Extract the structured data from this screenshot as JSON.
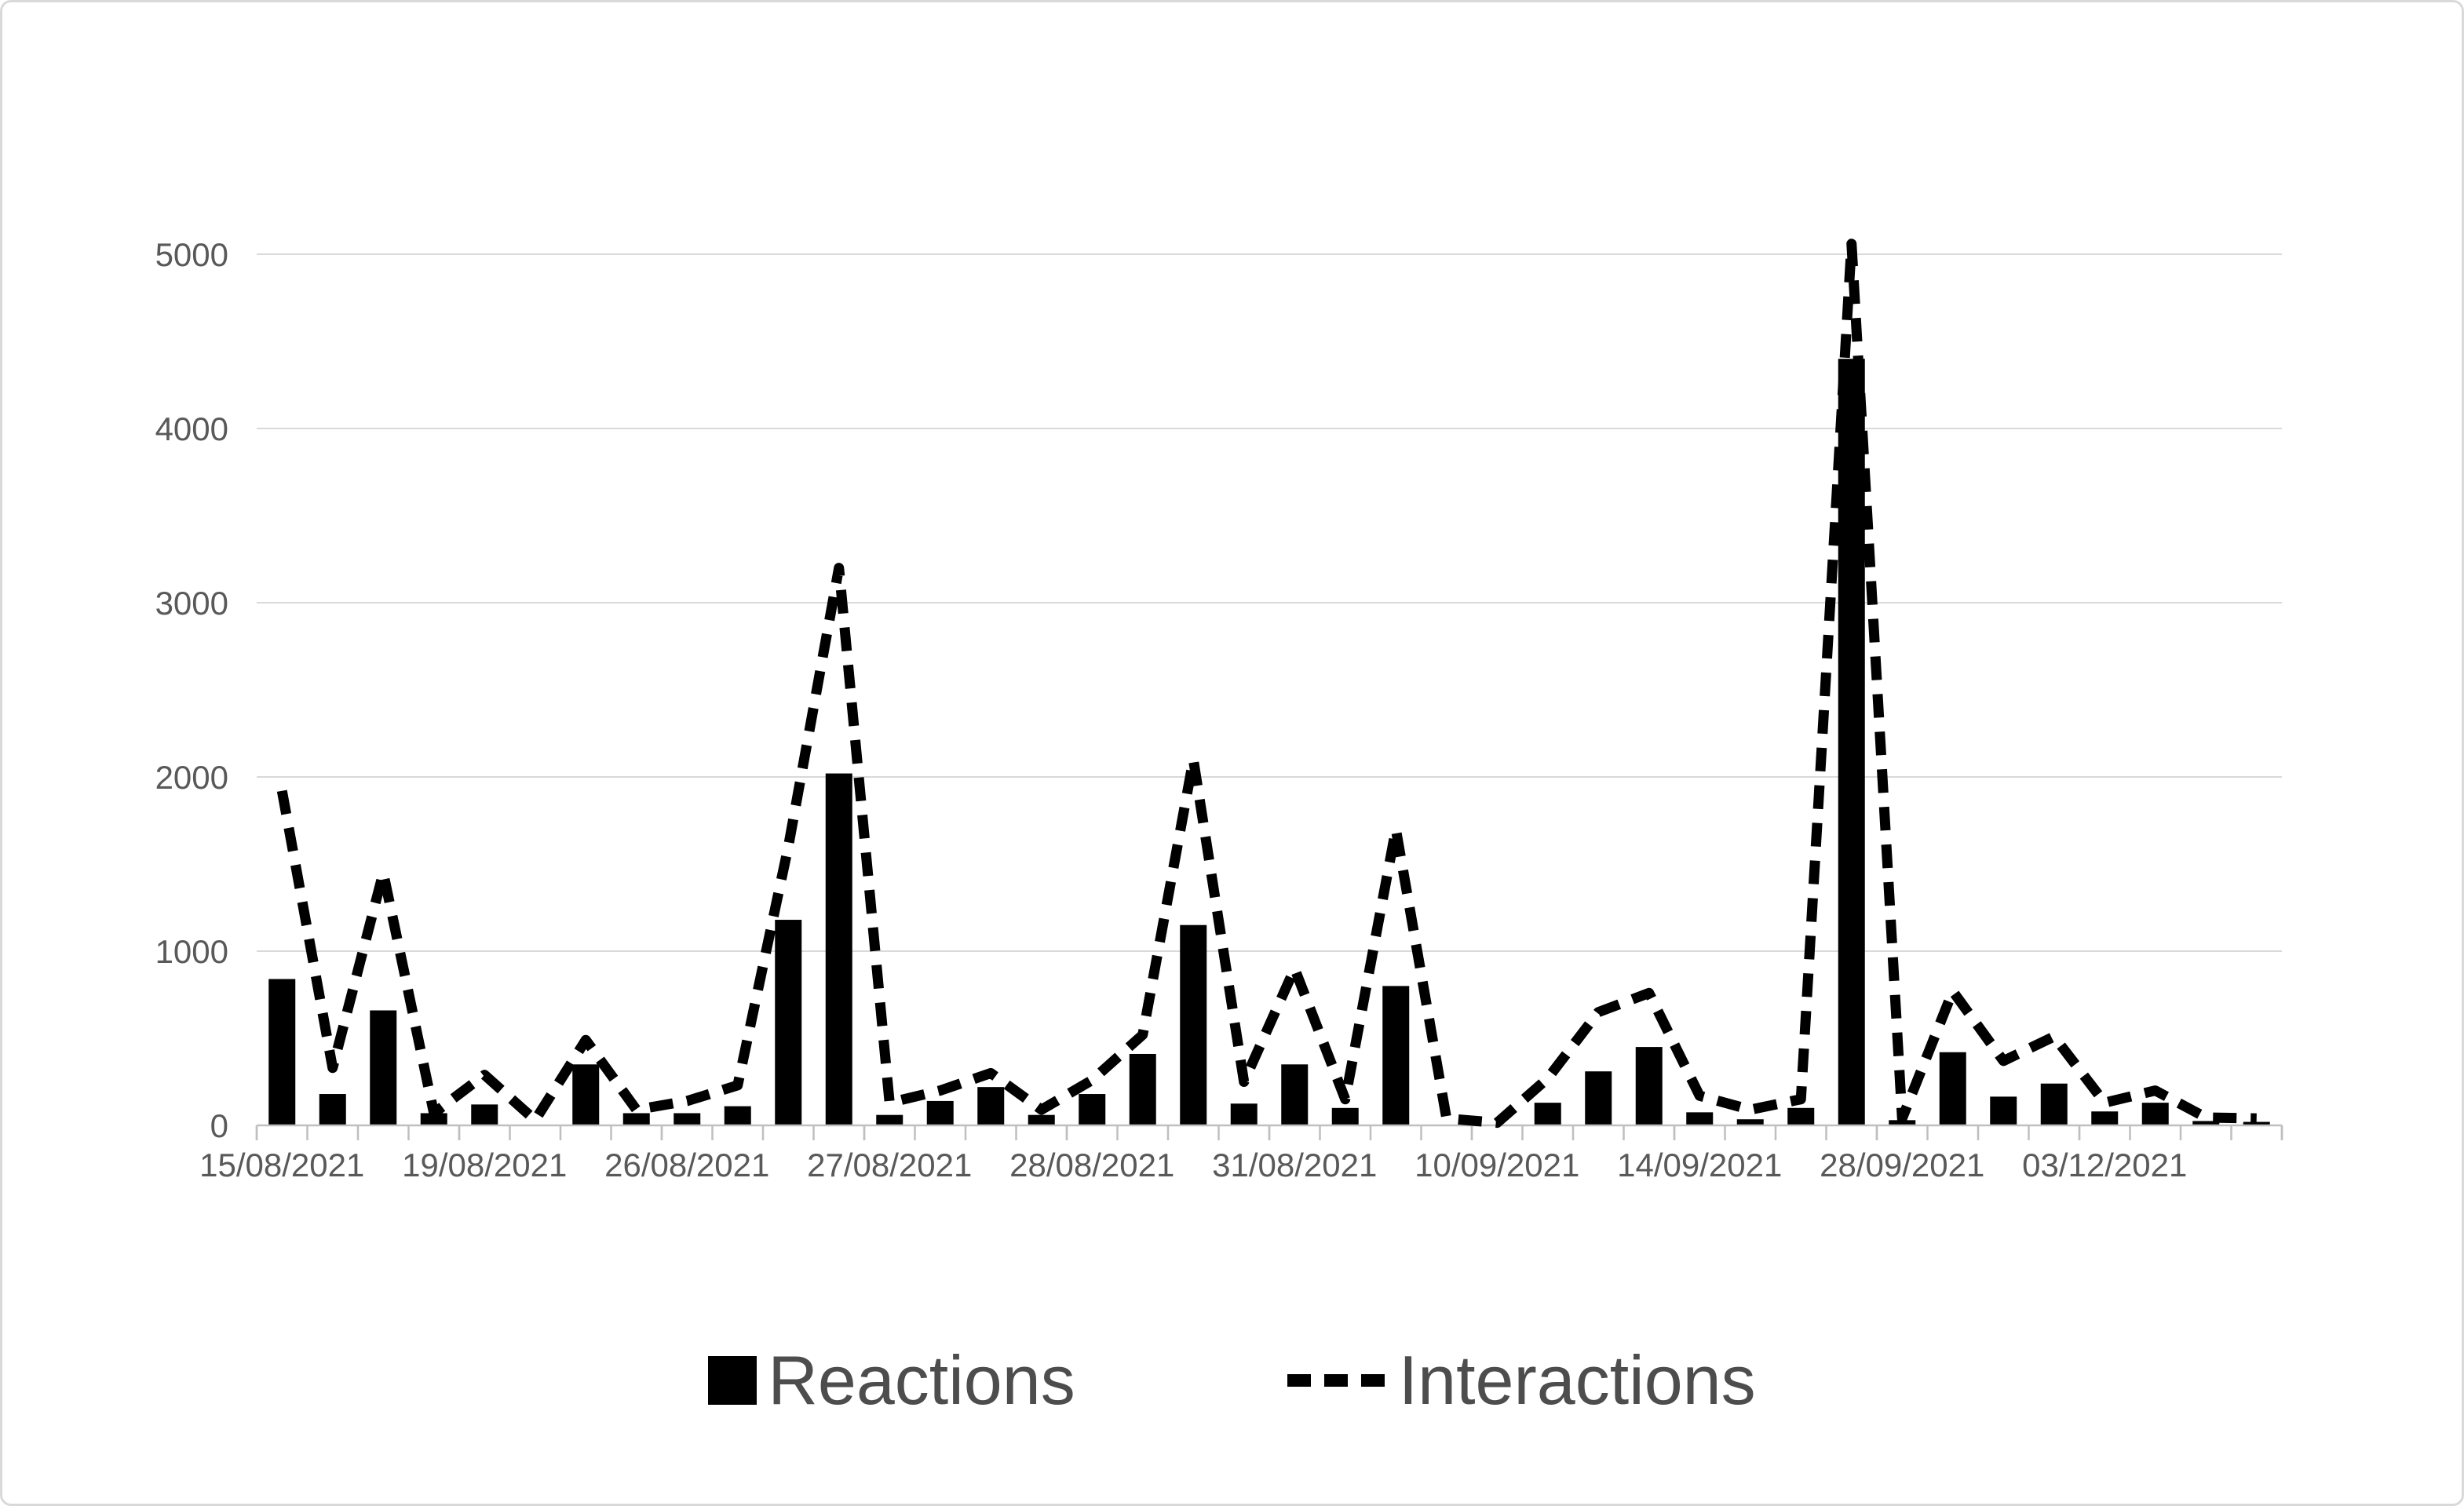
{
  "figure": {
    "background": "#ffffff",
    "border_color": "#d9d9d9"
  },
  "chart_data": {
    "type": "combo",
    "n_points": 40,
    "x_tick_labels": [
      "15/08/2021",
      "19/08/2021",
      "26/08/2021",
      "27/08/2021",
      "28/08/2021",
      "31/08/2021",
      "10/09/2021",
      "14/09/2021",
      "28/09/2021",
      "03/12/2021"
    ],
    "x_tick_label_interval": 4,
    "series": [
      {
        "name": "Reactions",
        "type": "bar",
        "color": "#000000",
        "values": [
          840,
          180,
          660,
          70,
          120,
          0,
          350,
          70,
          70,
          110,
          1180,
          2020,
          60,
          140,
          220,
          60,
          180,
          410,
          1150,
          125,
          350,
          100,
          800,
          0,
          0,
          130,
          310,
          450,
          75,
          35,
          100,
          4400,
          30,
          420,
          165,
          240,
          80,
          130,
          25,
          20
        ]
      },
      {
        "name": "Interactions",
        "type": "line",
        "dash": "dashed",
        "color": "#000000",
        "values": [
          1920,
          330,
          1450,
          70,
          290,
          30,
          490,
          90,
          140,
          230,
          1600,
          3200,
          130,
          200,
          300,
          90,
          260,
          520,
          2100,
          250,
          900,
          150,
          1700,
          40,
          15,
          270,
          650,
          760,
          170,
          90,
          150,
          5060,
          40,
          770,
          370,
          510,
          130,
          200,
          45,
          40
        ]
      }
    ],
    "ylim": [
      0,
      5000
    ],
    "y_ticks": [
      0,
      1000,
      2000,
      3000,
      4000,
      5000
    ],
    "grid": "horizontal",
    "legend_position": "bottom",
    "axis_color": "#bfbfbf",
    "gridline_color": "#d9d9d9",
    "tick_label_color": "#595959"
  },
  "legend": {
    "items": [
      {
        "label": "Reactions",
        "swatch": "filled-square"
      },
      {
        "label": "Interactions",
        "swatch": "dashed-line"
      }
    ]
  }
}
